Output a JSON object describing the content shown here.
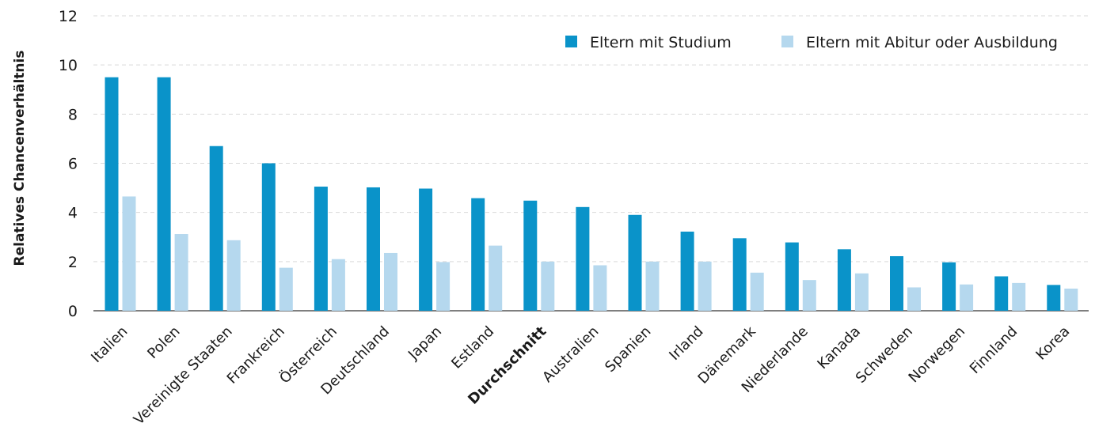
{
  "chart_data": {
    "type": "bar",
    "title": "",
    "xlabel": "",
    "ylabel": "Relatives Chancenverhältnis",
    "ylim": [
      0,
      12
    ],
    "yticks": [
      0,
      2,
      4,
      6,
      8,
      10,
      12
    ],
    "grid": true,
    "legend_position": "top-right",
    "categories": [
      "Italien",
      "Polen",
      "Vereinigte Staaten",
      "Frankreich",
      "Österreich",
      "Deutschland",
      "Japan",
      "Estland",
      "Durchschnitt",
      "Australien",
      "Spanien",
      "Irland",
      "Dänemark",
      "Niederlande",
      "Kanada",
      "Schweden",
      "Norwegen",
      "Finnland",
      "Korea"
    ],
    "highlight_category": "Durchschnitt",
    "series": [
      {
        "name": "Eltern mit Studium",
        "color": "#0a93c9",
        "values": [
          9.5,
          9.5,
          6.7,
          6.0,
          5.05,
          5.02,
          4.97,
          4.58,
          4.48,
          4.22,
          3.9,
          3.22,
          2.95,
          2.78,
          2.5,
          2.22,
          1.97,
          1.4,
          1.05
        ]
      },
      {
        "name": "Eltern mit Abitur oder Ausbildung",
        "color": "#b5d8ee",
        "values": [
          4.65,
          3.12,
          2.87,
          1.75,
          2.1,
          2.35,
          1.98,
          2.65,
          2.0,
          1.85,
          2.0,
          2.0,
          1.55,
          1.25,
          1.52,
          0.95,
          1.07,
          1.13,
          0.9
        ]
      }
    ]
  }
}
